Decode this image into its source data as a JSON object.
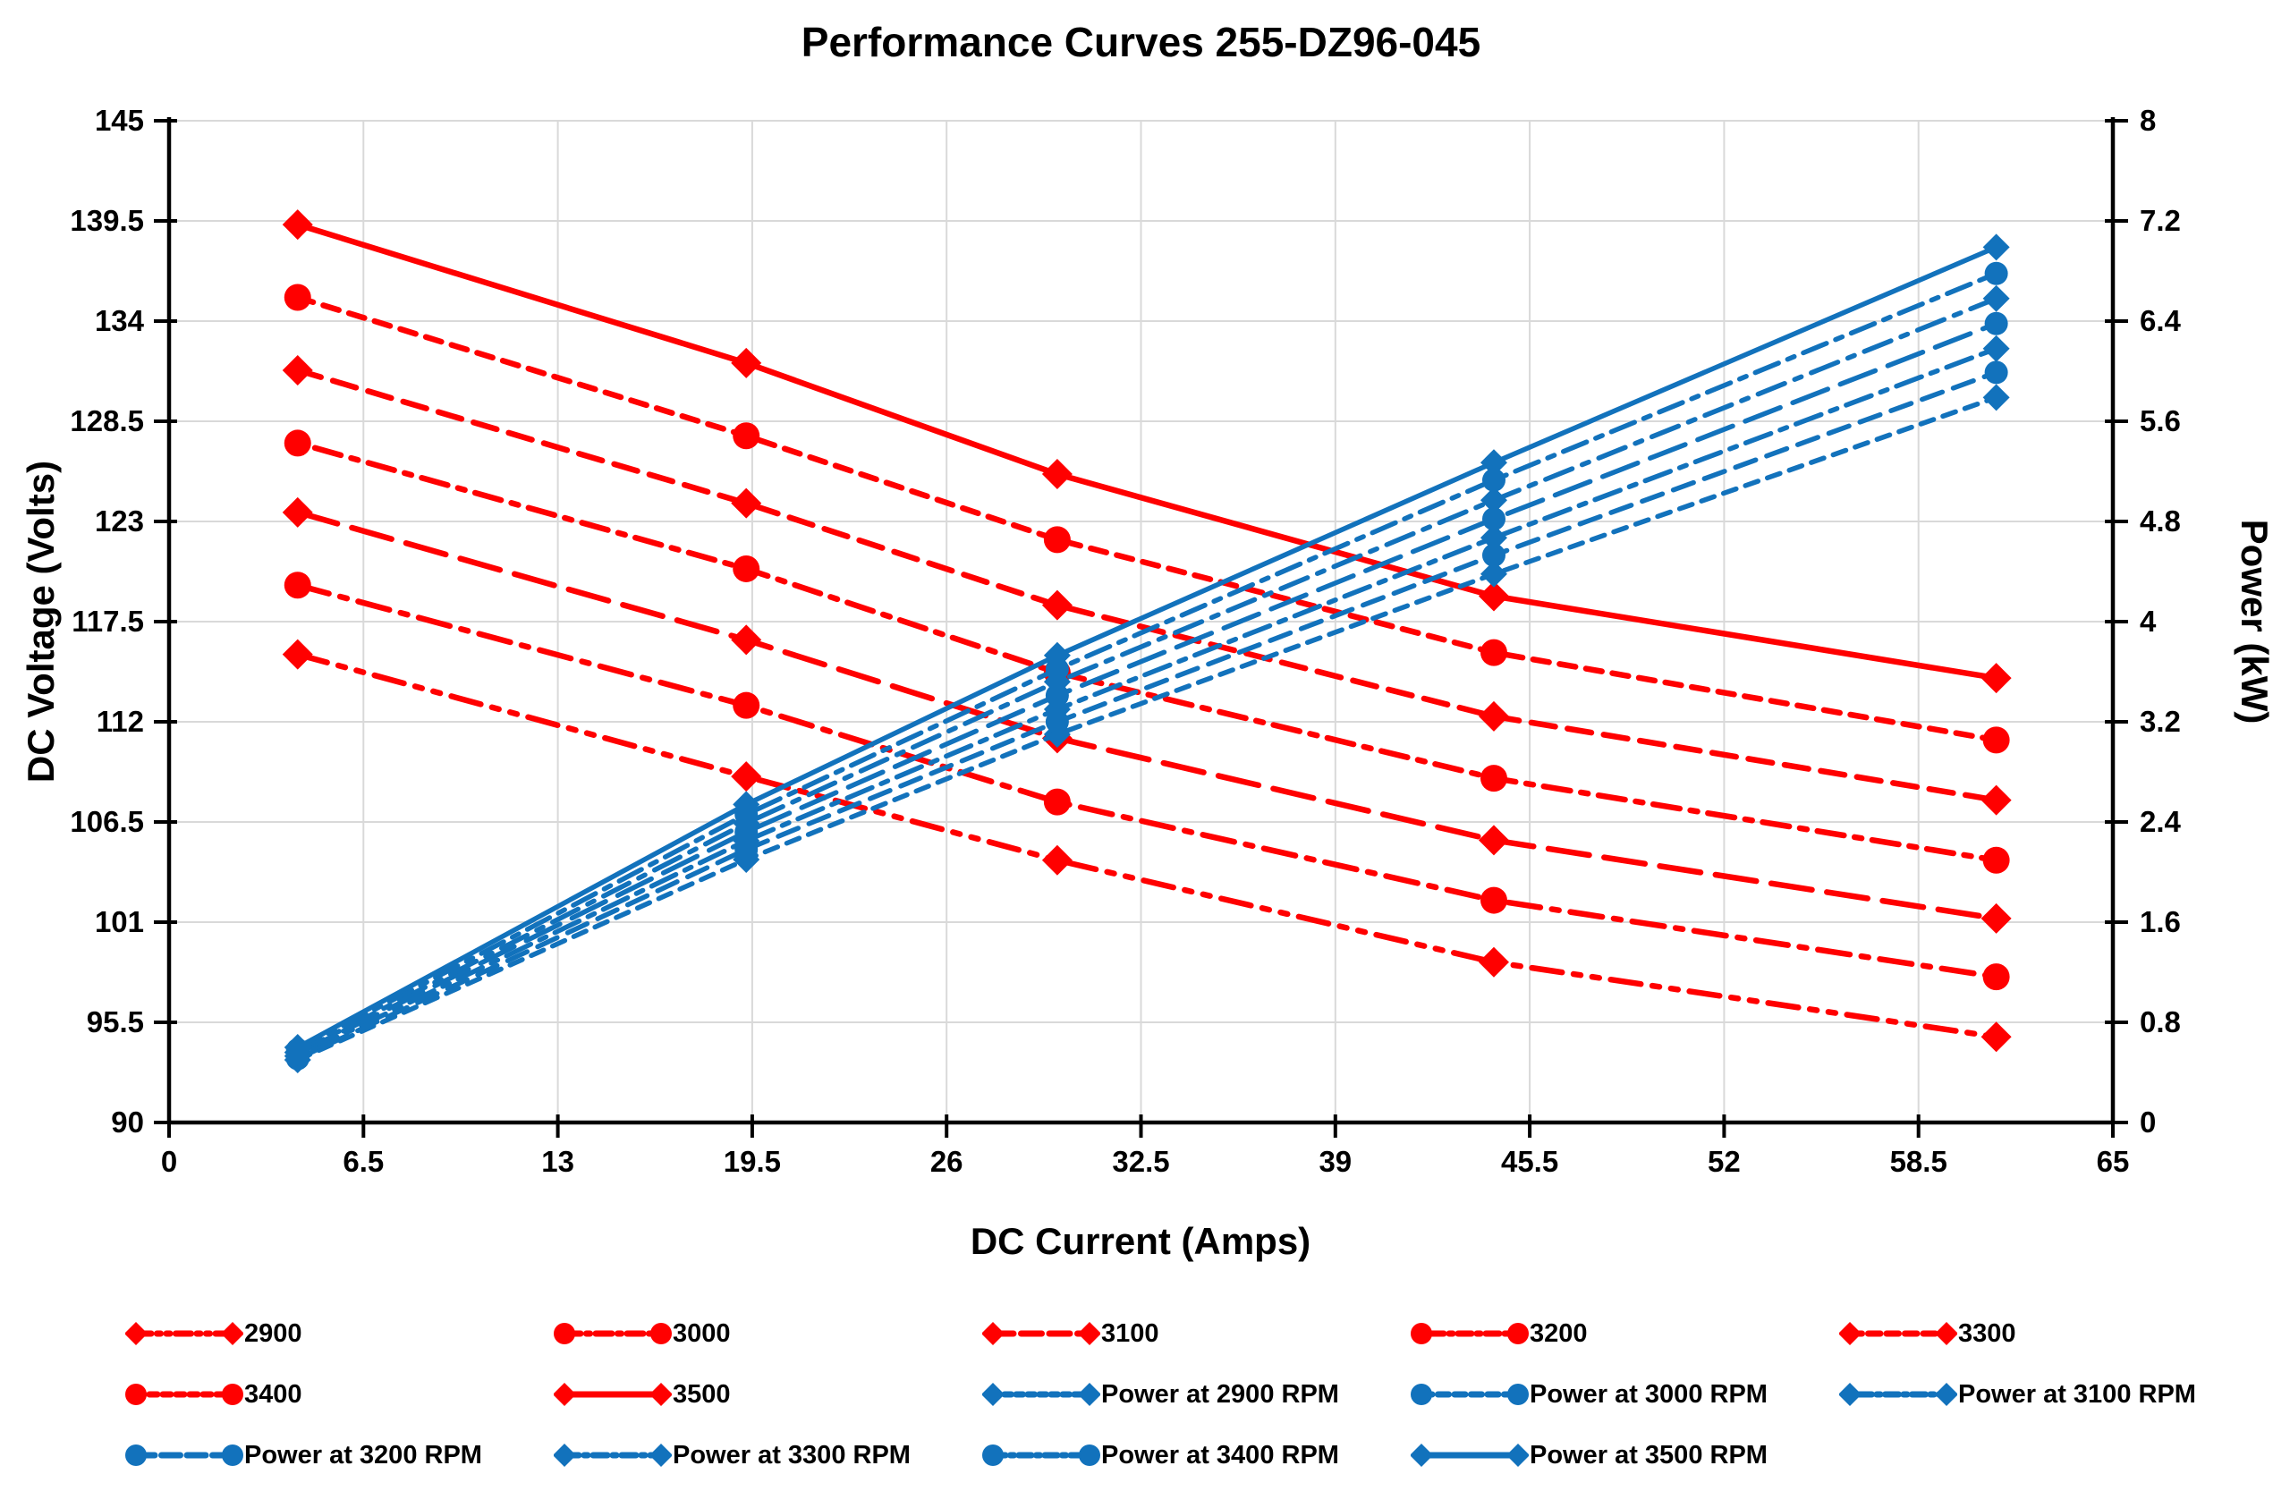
{
  "chart_data": {
    "type": "line",
    "title": "Performance Curves 255-DZ96-045",
    "xlabel": "DC Current (Amps)",
    "ylabel_left": "DC Voltage (Volts)",
    "ylabel_right": "Power (kW)",
    "xlim": [
      0,
      65
    ],
    "xticks": [
      0,
      6.5,
      13,
      19.5,
      26,
      32.5,
      39,
      45.5,
      52,
      58.5,
      65
    ],
    "ylim_left": [
      90,
      145
    ],
    "yticks_left": [
      90,
      95.5,
      101,
      106.5,
      112,
      117.5,
      123,
      128.5,
      134,
      139.5,
      145
    ],
    "ylim_right": [
      0,
      8
    ],
    "yticks_right": [
      0,
      0.8,
      1.6,
      2.4,
      3.2,
      4,
      4.8,
      5.6,
      6.4,
      7.2,
      8
    ],
    "grid": true,
    "legend_position": "bottom",
    "colors": {
      "voltage": "#FF0000",
      "power": "#1272BC"
    },
    "x": [
      4.3,
      19.3,
      29.7,
      44.3,
      61.1
    ],
    "series": [
      {
        "name": "2900",
        "axis": "left",
        "color": "voltage",
        "marker": "diamond",
        "dash": "34 13 8 13 8 13",
        "values": [
          115.7,
          109.0,
          104.4,
          98.8,
          94.7
        ]
      },
      {
        "name": "3000",
        "axis": "left",
        "color": "voltage",
        "marker": "circle",
        "dash": "36 13 8 13",
        "values": [
          119.5,
          112.9,
          107.6,
          102.2,
          98.0
        ]
      },
      {
        "name": "3100",
        "axis": "left",
        "color": "voltage",
        "marker": "diamond",
        "dash": "46 17",
        "values": [
          123.5,
          116.5,
          111.1,
          105.5,
          101.2
        ]
      },
      {
        "name": "3200",
        "axis": "left",
        "color": "voltage",
        "marker": "circle",
        "dash": "8 12 30 12",
        "values": [
          127.3,
          120.4,
          114.7,
          108.9,
          104.4
        ]
      },
      {
        "name": "3300",
        "axis": "left",
        "color": "voltage",
        "marker": "diamond",
        "dash": "27 14",
        "values": [
          131.3,
          124.0,
          118.4,
          112.3,
          107.7
        ]
      },
      {
        "name": "3400",
        "axis": "left",
        "color": "voltage",
        "marker": "circle",
        "dash": "18 12",
        "values": [
          135.3,
          127.7,
          122.0,
          115.8,
          111.0
        ]
      },
      {
        "name": "3500",
        "axis": "left",
        "color": "voltage",
        "marker": "diamond",
        "dash": "",
        "values": [
          139.3,
          131.7,
          125.6,
          118.9,
          114.4
        ]
      },
      {
        "name": "Power at 2900 RPM",
        "axis": "right",
        "color": "power",
        "marker": "diamond",
        "dash": "15 11",
        "values": [
          0.5,
          2.1,
          3.1,
          4.38,
          5.79
        ]
      },
      {
        "name": "Power at 3000 RPM",
        "axis": "right",
        "color": "power",
        "marker": "circle",
        "dash": "24 13",
        "values": [
          0.51,
          2.18,
          3.2,
          4.53,
          5.99
        ]
      },
      {
        "name": "Power at 3100 RPM",
        "axis": "right",
        "color": "power",
        "marker": "diamond",
        "dash": "8 11 30 11",
        "values": [
          0.53,
          2.25,
          3.3,
          4.67,
          6.18
        ]
      },
      {
        "name": "Power at 3200 RPM",
        "axis": "right",
        "color": "power",
        "marker": "circle",
        "dash": "42 15",
        "values": [
          0.55,
          2.32,
          3.41,
          4.82,
          6.38
        ]
      },
      {
        "name": "Power at 3300 RPM",
        "axis": "right",
        "color": "power",
        "marker": "diamond",
        "dash": "32 12 8 12",
        "values": [
          0.56,
          2.39,
          3.52,
          4.97,
          6.58
        ]
      },
      {
        "name": "Power at 3400 RPM",
        "axis": "right",
        "color": "power",
        "marker": "circle",
        "dash": "28 11 8 11",
        "values": [
          0.58,
          2.46,
          3.62,
          5.13,
          6.78
        ]
      },
      {
        "name": "Power at 3500 RPM",
        "axis": "right",
        "color": "power",
        "marker": "diamond",
        "dash": "",
        "values": [
          0.6,
          2.54,
          3.73,
          5.27,
          6.99
        ]
      }
    ]
  }
}
